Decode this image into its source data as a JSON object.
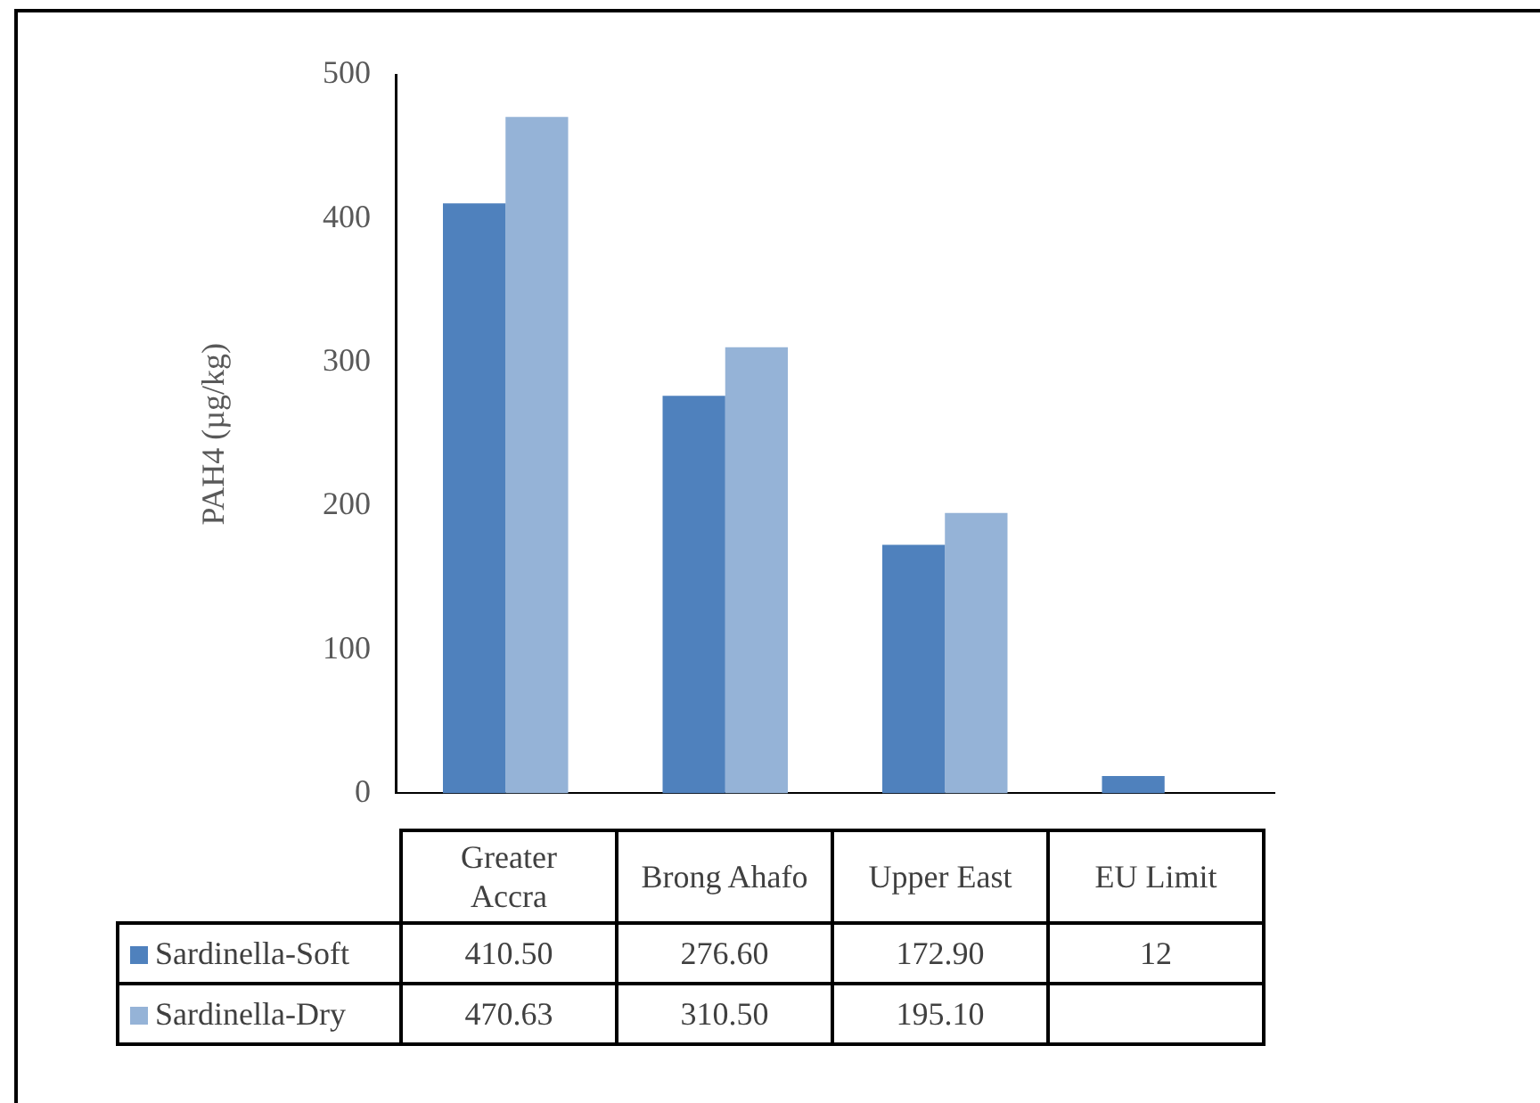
{
  "chart_data": {
    "type": "bar",
    "ylabel": "PAH4 (µg/kg)",
    "categories": [
      "Greater Accra",
      "Brong Ahafo",
      "Upper East",
      "EU Limit"
    ],
    "series": [
      {
        "name": "Sardinella-Soft",
        "color": "#4f81bd",
        "values": [
          410.5,
          276.6,
          172.9,
          12
        ],
        "value_labels": [
          "410.50",
          "276.60",
          "172.90",
          "12"
        ]
      },
      {
        "name": "Sardinella-Dry",
        "color": "#95b3d7",
        "values": [
          470.63,
          310.5,
          195.1,
          null
        ],
        "value_labels": [
          "470.63",
          "310.50",
          "195.10",
          null
        ]
      }
    ],
    "ylim": [
      0,
      500
    ],
    "yticks": [
      0,
      100,
      200,
      300,
      400,
      500
    ],
    "grid": false,
    "legend": "bottom",
    "data_labels": true
  }
}
